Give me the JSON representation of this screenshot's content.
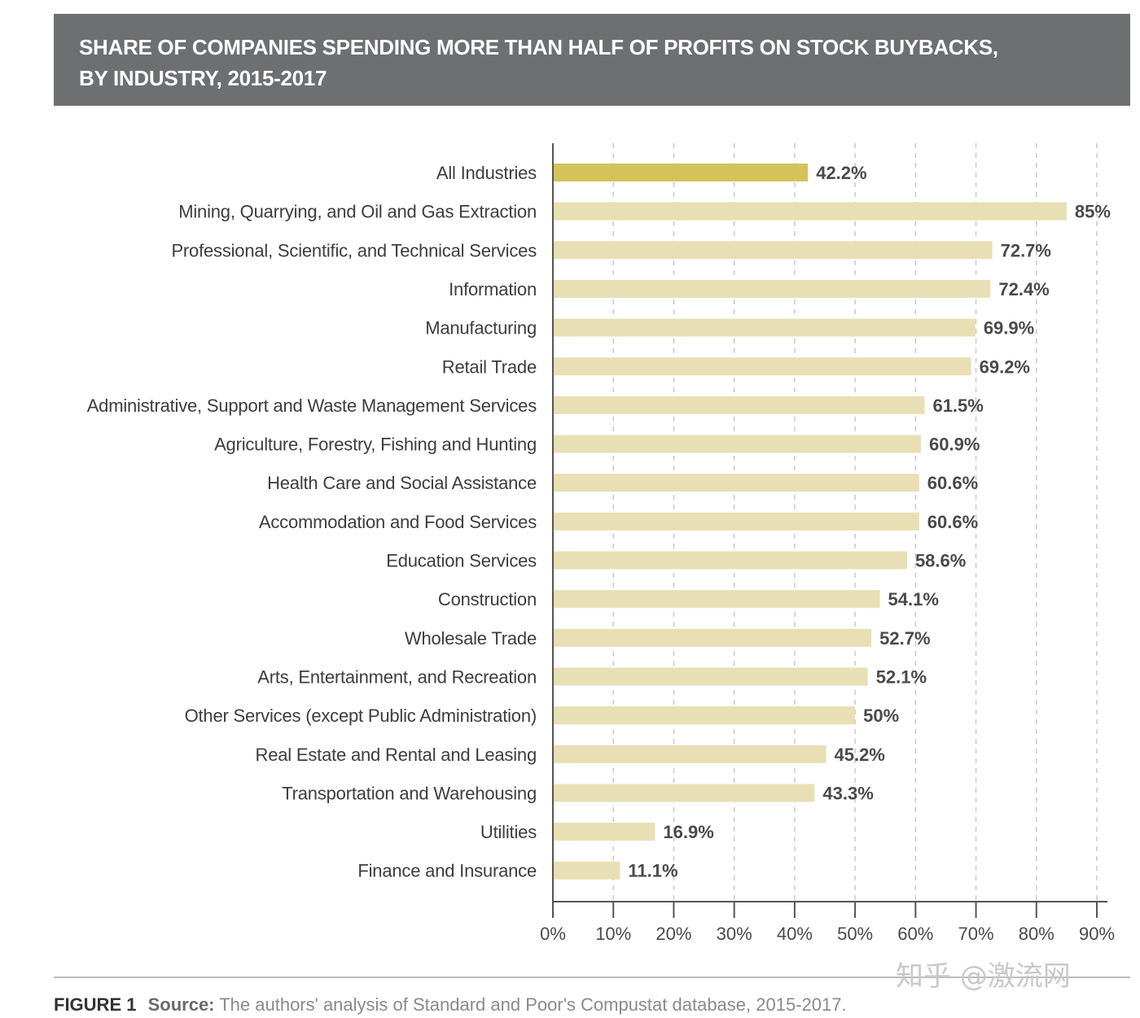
{
  "header": {
    "title_line1": "SHARE OF COMPANIES SPENDING MORE THAN HALF OF PROFITS ON STOCK BUYBACKS,",
    "title_line2": "BY INDUSTRY, 2015-2017"
  },
  "chart_data": {
    "type": "bar",
    "orientation": "horizontal",
    "title": "SHARE OF COMPANIES SPENDING MORE THAN HALF OF PROFITS ON STOCK BUYBACKS, BY INDUSTRY, 2015-2017",
    "categories": [
      "All Industries",
      "Mining, Quarrying, and Oil and Gas Extraction",
      "Professional, Scientific, and Technical Services",
      "Information",
      "Manufacturing",
      "Retail Trade",
      "Administrative, Support and Waste Management Services",
      "Agriculture, Forestry, Fishing and Hunting",
      "Health Care and Social Assistance",
      "Accommodation and Food Services",
      "Education Services",
      "Construction",
      "Wholesale Trade",
      "Arts, Entertainment, and Recreation",
      "Other Services (except Public Administration)",
      "Real Estate and Rental and Leasing",
      "Transportation and Warehousing",
      "Utilities",
      "Finance and Insurance"
    ],
    "values": [
      42.2,
      85,
      72.7,
      72.4,
      69.9,
      69.2,
      61.5,
      60.9,
      60.6,
      60.6,
      58.6,
      54.1,
      52.7,
      52.1,
      50,
      45.2,
      43.3,
      16.9,
      11.1
    ],
    "value_labels": [
      "42.2%",
      "85%",
      "72.7%",
      "72.4%",
      "69.9%",
      "69.2%",
      "61.5%",
      "60.9%",
      "60.6%",
      "60.6%",
      "58.6%",
      "54.1%",
      "52.7%",
      "52.1%",
      "50%",
      "45.2%",
      "43.3%",
      "16.9%",
      "11.1%"
    ],
    "highlight_index": 0,
    "xlim": [
      0,
      90
    ],
    "x_ticks": [
      0,
      10,
      20,
      30,
      40,
      50,
      60,
      70,
      80,
      90
    ],
    "x_tick_labels": [
      "0%",
      "10%",
      "20%",
      "30%",
      "40%",
      "50%",
      "60%",
      "70%",
      "80%",
      "90%"
    ],
    "xlabel": "",
    "ylabel": "",
    "grid": "vertical-dashed",
    "colors": {
      "highlight": "#d4c35a",
      "bar": "#e8e0b4",
      "axis": "#555555",
      "grid": "#c8c8c8"
    }
  },
  "footer": {
    "figure_id": "FIGURE 1",
    "source_label": "Source:",
    "source_text": "The authors' analysis of Standard and Poor's Compustat database, 2015-2017."
  },
  "watermark": "知乎 @激流网",
  "colors": {
    "banner_bg": "#6e6f71",
    "banner_text": "#ffffff"
  }
}
